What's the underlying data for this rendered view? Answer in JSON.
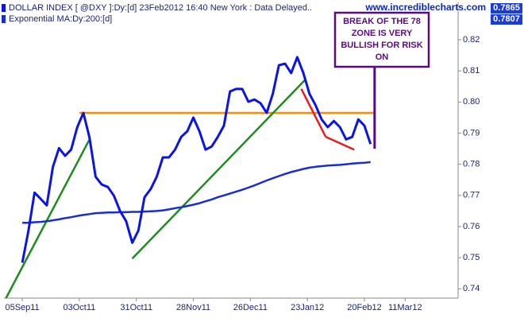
{
  "chart_data": {
    "type": "line",
    "legend": [
      "DOLLAR INDEX [ @DXY ]:Dy:[d]  23Feb2012 16:40 New York : Data Delayed..",
      "Exponential MA:Dy:200:[d]"
    ],
    "watermark": "www.incrediblecharts.com",
    "x": [
      "2011-09-05",
      "2011-09-08",
      "2011-09-11",
      "2011-09-14",
      "2011-09-17",
      "2011-09-20",
      "2011-09-23",
      "2011-09-26",
      "2011-09-29",
      "2011-10-02",
      "2011-10-05",
      "2011-10-08",
      "2011-10-11",
      "2011-10-14",
      "2011-10-17",
      "2011-10-20",
      "2011-10-23",
      "2011-10-26",
      "2011-10-29",
      "2011-11-01",
      "2011-11-04",
      "2011-11-07",
      "2011-11-10",
      "2011-11-13",
      "2011-11-16",
      "2011-11-19",
      "2011-11-22",
      "2011-11-25",
      "2011-11-28",
      "2011-12-01",
      "2011-12-04",
      "2011-12-07",
      "2011-12-10",
      "2011-12-13",
      "2011-12-16",
      "2011-12-19",
      "2011-12-22",
      "2011-12-25",
      "2011-12-28",
      "2011-12-31",
      "2012-01-03",
      "2012-01-06",
      "2012-01-09",
      "2012-01-12",
      "2012-01-15",
      "2012-01-18",
      "2012-01-21",
      "2012-01-24",
      "2012-01-27",
      "2012-01-30",
      "2012-02-02",
      "2012-02-05",
      "2012-02-08",
      "2012-02-11",
      "2012-02-14",
      "2012-02-17",
      "2012-02-20",
      "2012-02-23"
    ],
    "series": [
      {
        "name": "DOLLAR INDEX",
        "color": "#0a14e6",
        "width": 3,
        "last_value": 0.7865,
        "values": [
          0.7484,
          0.7586,
          0.7709,
          0.7689,
          0.7668,
          0.7791,
          0.7852,
          0.7827,
          0.7847,
          0.7919,
          0.7965,
          0.7886,
          0.776,
          0.7735,
          0.7727,
          0.7699,
          0.765,
          0.7617,
          0.7548,
          0.7587,
          0.7694,
          0.772,
          0.776,
          0.7822,
          0.7822,
          0.7847,
          0.7888,
          0.7906,
          0.795,
          0.7906,
          0.7847,
          0.7857,
          0.7888,
          0.7924,
          0.8034,
          0.8042,
          0.8042,
          0.8001,
          0.8008,
          0.7996,
          0.7965,
          0.8026,
          0.8118,
          0.8123,
          0.8093,
          0.8144,
          0.8093,
          0.8026,
          0.799,
          0.7944,
          0.7919,
          0.7939,
          0.7919,
          0.788,
          0.7888,
          0.7944,
          0.7924,
          0.7865
        ]
      },
      {
        "name": "Exponential MA",
        "color": "#1a2ed0",
        "width": 2.5,
        "last_value": 0.7807,
        "values": [
          0.7612,
          0.7612,
          0.7614,
          0.7615,
          0.7617,
          0.762,
          0.7623,
          0.7627,
          0.763,
          0.7634,
          0.7637,
          0.764,
          0.7643,
          0.7644,
          0.7645,
          0.7645,
          0.7646,
          0.7646,
          0.7647,
          0.7647,
          0.7648,
          0.7649,
          0.765,
          0.7652,
          0.7655,
          0.7659,
          0.7662,
          0.7666,
          0.767,
          0.7675,
          0.7681,
          0.7687,
          0.7694,
          0.77,
          0.7706,
          0.7712,
          0.7718,
          0.7725,
          0.7732,
          0.774,
          0.7748,
          0.7755,
          0.7762,
          0.7769,
          0.7775,
          0.778,
          0.7785,
          0.7789,
          0.7792,
          0.7794,
          0.7796,
          0.7797,
          0.7798,
          0.78,
          0.7802,
          0.7804,
          0.7805,
          0.7807
        ]
      }
    ],
    "trend_lines": [
      {
        "color": "#ff8c00",
        "x": [
          "2011-10-03",
          "2012-02-25"
        ],
        "values": [
          0.7965,
          0.7965
        ]
      },
      {
        "color": "#1e8c1e",
        "x": [
          "2011-08-28",
          "2011-10-08"
        ],
        "values": [
          0.737,
          0.788
        ]
      },
      {
        "color": "#1e8c1e",
        "x": [
          "2011-10-29",
          "2012-01-22"
        ],
        "values": [
          0.7497,
          0.8072
        ]
      },
      {
        "color": "#e61e1e",
        "x": [
          "2012-01-20",
          "2012-02-01"
        ],
        "values": [
          0.8042,
          0.7888
        ]
      },
      {
        "color": "#e61e1e",
        "x": [
          "2012-02-01",
          "2012-02-15"
        ],
        "values": [
          0.7888,
          0.7847
        ]
      }
    ],
    "annotation": {
      "lines": [
        "BREAK OF THE 78",
        "ZONE IS VERY",
        "BULLISH FOR RISK",
        "ON"
      ],
      "x": "2012-02-25",
      "y": 0.785,
      "color": "#5a0a80"
    },
    "xlim": [
      "2011-08-27",
      "2012-04-06"
    ],
    "xticks": [
      {
        "value": "2011-09-05",
        "label": "05Sep11"
      },
      {
        "value": "2011-10-03",
        "label": "03Oct11"
      },
      {
        "value": "2011-10-31",
        "label": "31Oct11"
      },
      {
        "value": "2011-11-28",
        "label": "28Nov11"
      },
      {
        "value": "2011-12-26",
        "label": "26Dec11"
      },
      {
        "value": "2012-01-23",
        "label": "23Jan12"
      },
      {
        "value": "2012-02-20",
        "label": "20Feb12"
      },
      {
        "value": "2012-03-11",
        "label": "11Mar12"
      }
    ],
    "ylim": [
      0.737,
      0.832
    ],
    "yticks": [
      0.74,
      0.75,
      0.76,
      0.77,
      0.78,
      0.79,
      {
        "value": 0.8,
        "label": "0.80"
      },
      0.81,
      0.82
    ],
    "grid": false
  }
}
